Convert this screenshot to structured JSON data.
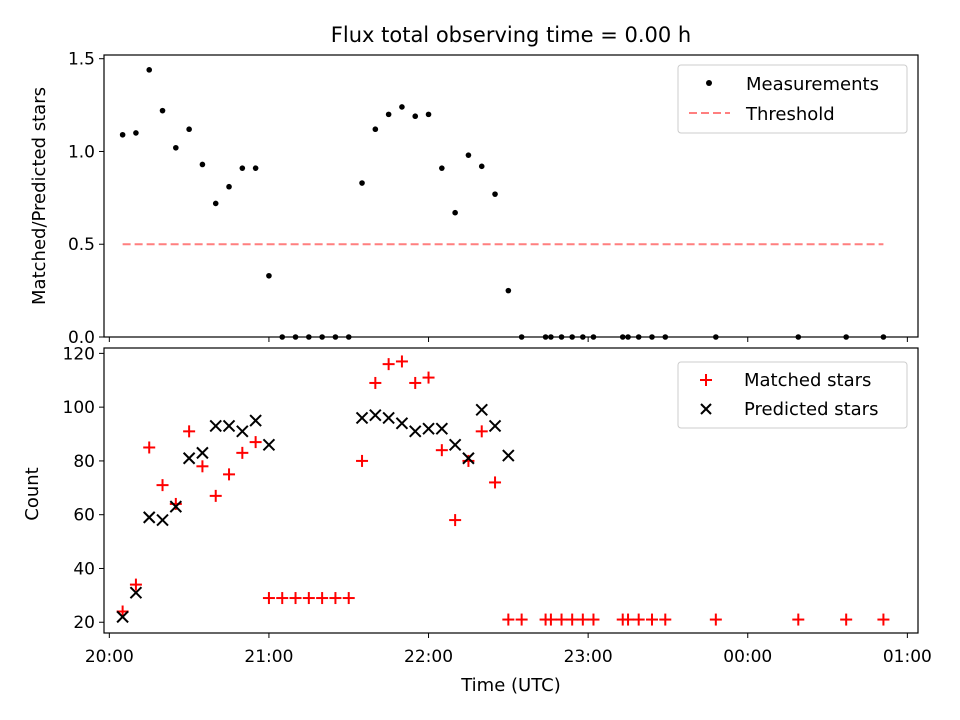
{
  "chart_data": [
    {
      "type": "scatter",
      "title": "Flux total observing time = 0.00 h",
      "xlabel": "",
      "ylabel": "Matched/Predicted stars",
      "xlim": [
        "19:58",
        "01:04"
      ],
      "ylim": [
        0,
        1.52
      ],
      "yticks": [
        0.0,
        0.5,
        1.0,
        1.5
      ],
      "ytick_labels": [
        "0.0",
        "0.5",
        "1.0",
        "1.5"
      ],
      "legend_position": "top-right",
      "grid": false,
      "series": [
        {
          "name": "Measurements",
          "marker": "dot",
          "color": "#000000",
          "x": [
            "20:05",
            "20:10",
            "20:15",
            "20:20",
            "20:25",
            "20:30",
            "20:35",
            "20:40",
            "20:45",
            "20:50",
            "20:55",
            "21:00",
            "21:05",
            "21:10",
            "21:15",
            "21:20",
            "21:25",
            "21:30",
            "21:35",
            "21:40",
            "21:45",
            "21:50",
            "21:55",
            "22:00",
            "22:05",
            "22:10",
            "22:15",
            "22:20",
            "22:25",
            "22:30",
            "22:35",
            "22:44",
            "22:46",
            "22:50",
            "22:54",
            "22:58",
            "23:02",
            "23:13",
            "23:15",
            "23:19",
            "23:24",
            "23:29",
            "23:48",
            "00:19",
            "00:37",
            "00:51"
          ],
          "y": [
            1.09,
            1.1,
            1.44,
            1.22,
            1.02,
            1.12,
            0.93,
            0.72,
            0.81,
            0.91,
            0.91,
            0.33,
            0.0,
            0.0,
            0.0,
            0.0,
            0.0,
            0.0,
            0.83,
            1.12,
            1.2,
            1.24,
            1.19,
            1.2,
            0.91,
            0.67,
            0.98,
            0.92,
            0.77,
            0.25,
            0.0,
            0.0,
            0.0,
            0.0,
            0.0,
            0.0,
            0.0,
            0.0,
            0.0,
            0.0,
            0.0,
            0.0,
            0.0,
            0.0,
            0.0,
            0.0
          ]
        },
        {
          "name": "Threshold",
          "line_style": "dashed",
          "color": "#ff7f7f",
          "x": [
            "20:05",
            "00:51"
          ],
          "y": [
            0.5,
            0.5
          ]
        }
      ]
    },
    {
      "type": "scatter",
      "title": "",
      "xlabel": "Time (UTC)",
      "ylabel": "Count",
      "xlim": [
        "19:58",
        "01:04"
      ],
      "ylim": [
        16,
        122
      ],
      "yticks": [
        20,
        40,
        60,
        80,
        100,
        120
      ],
      "ytick_labels": [
        "20",
        "40",
        "60",
        "80",
        "100",
        "120"
      ],
      "xticks": [
        "20:00",
        "21:00",
        "22:00",
        "23:00",
        "00:00",
        "01:00"
      ],
      "xtick_labels": [
        "20:00",
        "21:00",
        "22:00",
        "23:00",
        "00:00",
        "01:00"
      ],
      "legend_position": "top-right",
      "grid": false,
      "series": [
        {
          "name": "Matched stars",
          "marker": "plus",
          "color": "#ff0000",
          "x": [
            "20:05",
            "20:10",
            "20:15",
            "20:20",
            "20:25",
            "20:30",
            "20:35",
            "20:40",
            "20:45",
            "20:50",
            "20:55",
            "21:00",
            "21:05",
            "21:10",
            "21:15",
            "21:20",
            "21:25",
            "21:30",
            "21:35",
            "21:40",
            "21:45",
            "21:50",
            "21:55",
            "22:00",
            "22:05",
            "22:10",
            "22:15",
            "22:20",
            "22:25",
            "22:30",
            "22:35",
            "22:44",
            "22:46",
            "22:50",
            "22:54",
            "22:58",
            "23:02",
            "23:13",
            "23:15",
            "23:19",
            "23:24",
            "23:29",
            "23:48",
            "00:19",
            "00:37",
            "00:51"
          ],
          "y": [
            24,
            34,
            85,
            71,
            64,
            91,
            78,
            67,
            75,
            83,
            87,
            29,
            29,
            29,
            29,
            29,
            29,
            29,
            80,
            109,
            116,
            117,
            109,
            111,
            84,
            58,
            80,
            91,
            72,
            21,
            21,
            21,
            21,
            21,
            21,
            21,
            21,
            21,
            21,
            21,
            21,
            21,
            21,
            21,
            21,
            21
          ]
        },
        {
          "name": "Predicted stars",
          "marker": "x",
          "color": "#000000",
          "x": [
            "20:05",
            "20:10",
            "20:15",
            "20:20",
            "20:25",
            "20:30",
            "20:35",
            "20:40",
            "20:45",
            "20:50",
            "20:55",
            "21:00",
            "21:35",
            "21:40",
            "21:45",
            "21:50",
            "21:55",
            "22:00",
            "22:05",
            "22:10",
            "22:15",
            "22:20",
            "22:25",
            "22:30"
          ],
          "y": [
            22,
            31,
            59,
            58,
            63,
            81,
            83,
            93,
            93,
            91,
            95,
            86,
            96,
            97,
            96,
            94,
            91,
            92,
            92,
            86,
            81,
            99,
            93,
            82
          ]
        }
      ]
    }
  ]
}
